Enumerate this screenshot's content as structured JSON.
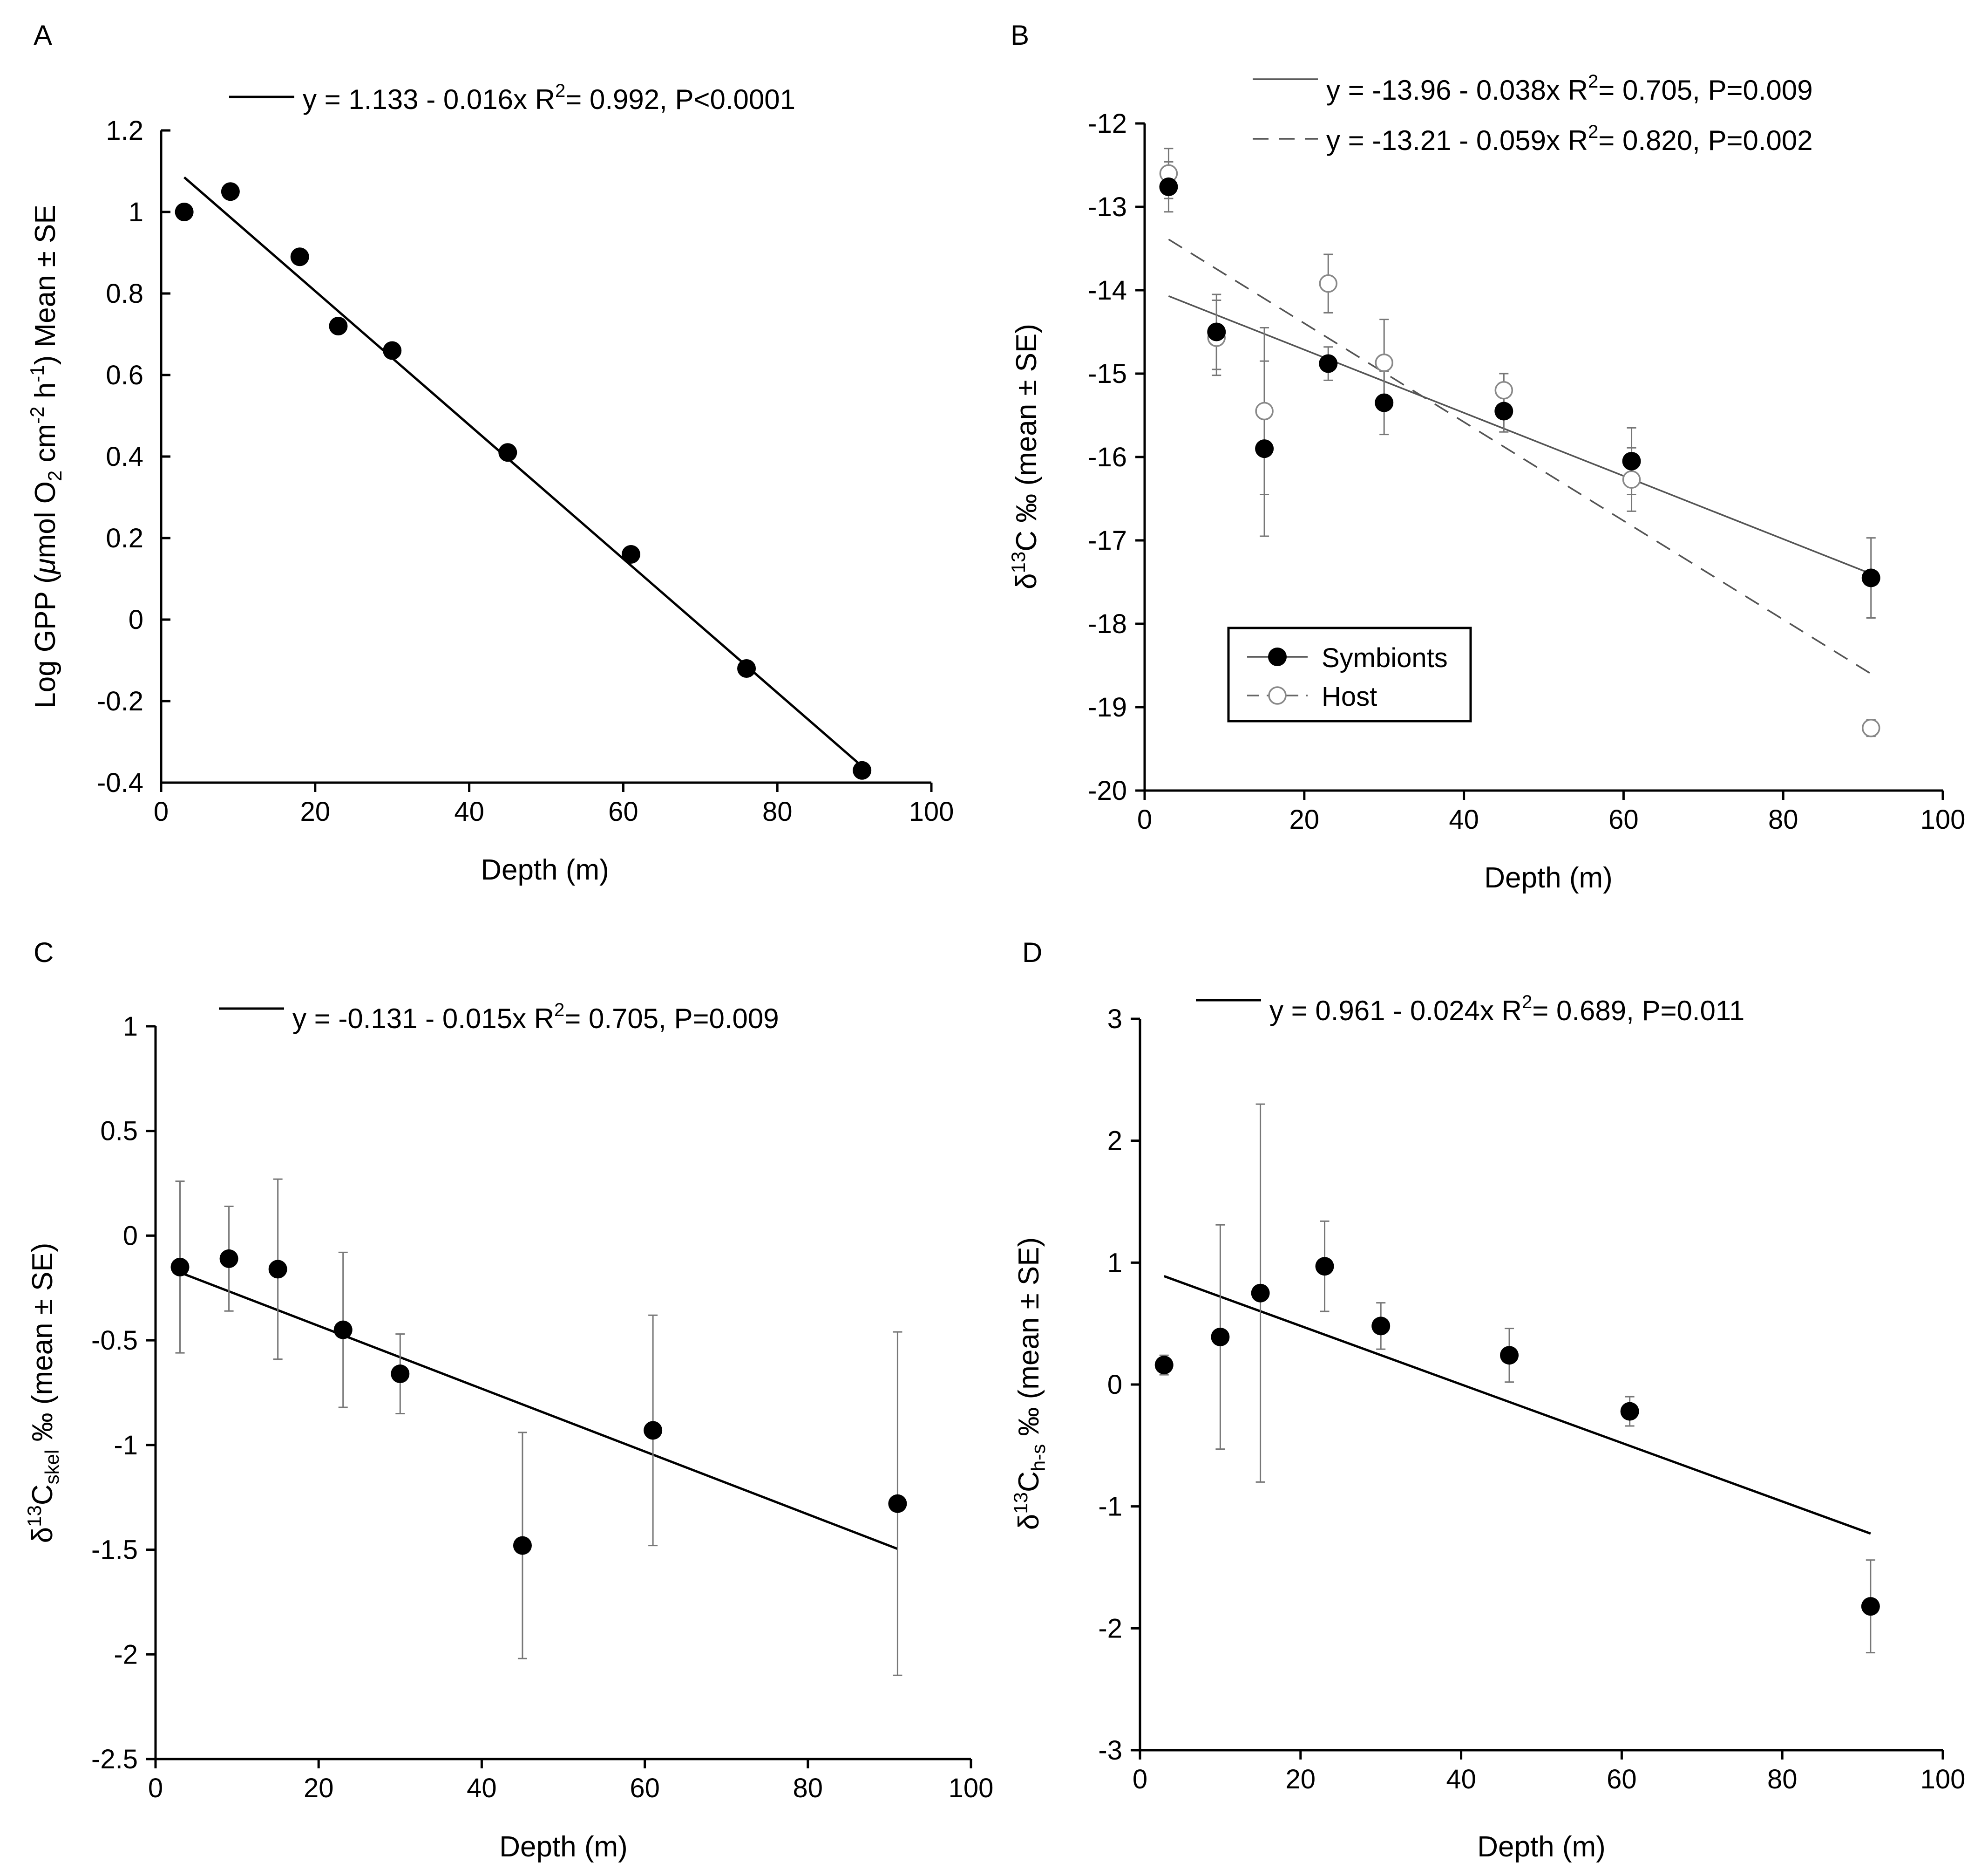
{
  "chart_data": [
    {
      "panel": "A",
      "type": "scatter",
      "xlabel": "Depth (m)",
      "ylabel": {
        "pre": "Log GPP (",
        "mu": "μ",
        "a": "mol O",
        "sub1": "2",
        "b": " cm",
        "sup1": "-2",
        "c": " h",
        "sup2": "-1",
        "d": ") Mean ± SE"
      },
      "xlim": [
        0,
        100
      ],
      "ylim": [
        -0.4,
        1.2
      ],
      "xticks": [
        "0",
        "20",
        "40",
        "60",
        "80",
        "100"
      ],
      "yticks": [
        "-0.4",
        "-0.2",
        "0",
        "0.2",
        "0.4",
        "0.6",
        "0.8",
        "1",
        "1.2"
      ],
      "legend": [
        {
          "eq": "y = 1.133 - 0.016x",
          "r2": "R",
          "r2sup": "2",
          "rest": "= 0.992, P<0.0001"
        }
      ],
      "series": [
        {
          "name": "GPP",
          "marker": "filled",
          "points": [
            [
              3,
              1.0
            ],
            [
              9,
              1.05
            ],
            [
              18,
              0.89
            ],
            [
              23,
              0.72
            ],
            [
              30,
              0.66
            ],
            [
              45,
              0.41
            ],
            [
              61,
              0.16
            ],
            [
              76,
              -0.12
            ],
            [
              91,
              -0.37
            ]
          ]
        }
      ],
      "fits": [
        {
          "x": [
            3,
            91
          ],
          "y": [
            1.085,
            -0.36
          ],
          "style": "solid"
        }
      ]
    },
    {
      "panel": "B",
      "type": "scatter",
      "xlabel": "Depth (m)",
      "ylabel": {
        "pre": "δ",
        "sup": "13",
        "post": "C ‰ (mean ± SE)"
      },
      "xlim": [
        0,
        100
      ],
      "ylim": [
        -20,
        -12
      ],
      "xticks": [
        "0",
        "20",
        "40",
        "60",
        "80",
        "100"
      ],
      "yticks": [
        "-20",
        "-19",
        "-18",
        "-17",
        "-16",
        "-15",
        "-14",
        "-13",
        "-12"
      ],
      "legend": [
        {
          "eq": "y = -13.96 - 0.038x",
          "r2": "R",
          "r2sup": "2",
          "rest": "= 0.705, P=0.009"
        },
        {
          "eq": "y = -13.21 - 0.059x",
          "r2": "R",
          "r2sup": "2",
          "rest": "= 0.820, P=0.002"
        }
      ],
      "series_legend": [
        "Symbionts",
        "Host"
      ],
      "series": [
        {
          "name": "Symbionts",
          "marker": "filled",
          "points": [
            [
              3,
              -12.76
            ],
            [
              9,
              -14.5
            ],
            [
              15,
              -15.9
            ],
            [
              23,
              -14.88
            ],
            [
              30,
              -15.35
            ],
            [
              45,
              -15.45
            ],
            [
              61,
              -16.05
            ],
            [
              91,
              -17.45
            ]
          ],
          "err": [
            0.3,
            0.45,
            1.05,
            0.2,
            0.38,
            0.25,
            0.4,
            0.48
          ]
        },
        {
          "name": "Host",
          "marker": "open",
          "points": [
            [
              3,
              -12.6
            ],
            [
              9,
              -14.57
            ],
            [
              15,
              -15.45
            ],
            [
              23,
              -13.92
            ],
            [
              30,
              -14.87
            ],
            [
              45,
              -15.2
            ],
            [
              61,
              -16.27
            ],
            [
              91,
              -19.25
            ]
          ],
          "err": [
            0.3,
            0.45,
            1.0,
            0.35,
            0.52,
            0.2,
            0.38,
            0.1
          ]
        }
      ],
      "fits": [
        {
          "x": [
            3,
            91
          ],
          "y": [
            -14.07,
            -17.4
          ],
          "style": "solid"
        },
        {
          "x": [
            3,
            91
          ],
          "y": [
            -13.39,
            -18.6
          ],
          "style": "dashed"
        }
      ]
    },
    {
      "panel": "C",
      "type": "scatter",
      "xlabel": "Depth (m)",
      "ylabel": {
        "pre": "δ",
        "sup": "13",
        "mid": "C",
        "sub": "skel",
        "post": " ‰ (mean ± SE)"
      },
      "xlim": [
        0,
        100
      ],
      "ylim": [
        -2.5,
        1
      ],
      "xticks": [
        "0",
        "20",
        "40",
        "60",
        "80",
        "100"
      ],
      "yticks": [
        "-2.5",
        "-2",
        "-1.5",
        "-1",
        "-0.5",
        "0",
        "0.5",
        "1"
      ],
      "legend": [
        {
          "eq": "y = -0.131 - 0.015x",
          "r2": "R",
          "r2sup": "2",
          "rest": "= 0.705, P=0.009"
        }
      ],
      "series": [
        {
          "name": "skel",
          "marker": "filled",
          "points": [
            [
              3,
              -0.15
            ],
            [
              9,
              -0.11
            ],
            [
              15,
              -0.16
            ],
            [
              23,
              -0.45
            ],
            [
              30,
              -0.66
            ],
            [
              45,
              -1.48
            ],
            [
              61,
              -0.93
            ],
            [
              91,
              -1.28
            ]
          ],
          "err": [
            0.41,
            0.25,
            0.43,
            0.37,
            0.19,
            0.54,
            0.55,
            0.82
          ]
        }
      ],
      "fits": [
        {
          "x": [
            3,
            91
          ],
          "y": [
            -0.176,
            -1.496
          ],
          "style": "solid"
        }
      ]
    },
    {
      "panel": "D",
      "type": "scatter",
      "xlabel": "Depth (m)",
      "ylabel": {
        "pre": "δ",
        "sup": "13",
        "mid": "C",
        "sub": "h-s",
        "post": " ‰ (mean ± SE)"
      },
      "xlim": [
        0,
        100
      ],
      "ylim": [
        -3,
        3
      ],
      "xticks": [
        "0",
        "20",
        "40",
        "60",
        "80",
        "100"
      ],
      "yticks": [
        "-3",
        "-2",
        "-1",
        "0",
        "1",
        "2",
        "3"
      ],
      "legend": [
        {
          "eq": "y = 0.961 - 0.024x",
          "r2": "R",
          "r2sup": "2",
          "rest": "= 0.689, P=0.011"
        }
      ],
      "series": [
        {
          "name": "h-s",
          "marker": "filled",
          "points": [
            [
              3,
              0.16
            ],
            [
              10,
              0.39
            ],
            [
              15,
              0.75
            ],
            [
              23,
              0.97
            ],
            [
              30,
              0.48
            ],
            [
              46,
              0.24
            ],
            [
              61,
              -0.22
            ],
            [
              91,
              -1.82
            ]
          ],
          "err": [
            0.08,
            0.92,
            1.55,
            0.37,
            0.19,
            0.22,
            0.12,
            0.38
          ]
        }
      ],
      "fits": [
        {
          "x": [
            3,
            91
          ],
          "y": [
            0.889,
            -1.223
          ],
          "style": "solid"
        }
      ]
    }
  ]
}
